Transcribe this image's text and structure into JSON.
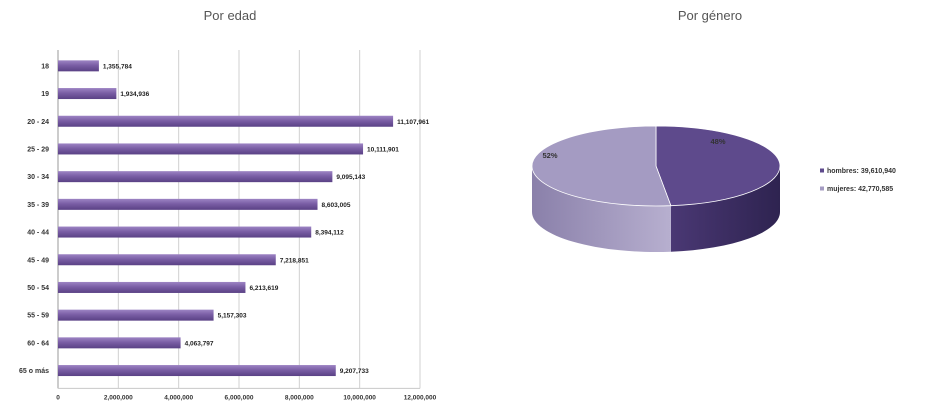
{
  "chart_data": [
    {
      "type": "bar",
      "orientation": "horizontal",
      "title": "Por edad",
      "categories": [
        "18",
        "19",
        "20 - 24",
        "25 - 29",
        "30 - 34",
        "35 - 39",
        "40 - 44",
        "45 - 49",
        "50 - 54",
        "55 - 59",
        "60 - 64",
        "65 o más"
      ],
      "values": [
        1355784,
        1934936,
        11107961,
        10111901,
        9095143,
        8603005,
        8394112,
        7218851,
        6213619,
        5157303,
        4063797,
        9207733
      ],
      "value_labels": [
        "1,355,784",
        "1,934,936",
        "11,107,961",
        "10,111,901",
        "9,095,143",
        "8,603,005",
        "8,394,112",
        "7,218,851",
        "6,213,619",
        "5,157,303",
        "4,063,797",
        "9,207,733"
      ],
      "xlim": [
        0,
        12000000
      ],
      "xticks": [
        "0",
        "2,000,000",
        "4,000,000",
        "6,000,000",
        "8,000,000",
        "10,000,000",
        "12,000,000"
      ],
      "grid": true,
      "bar_color": "#7a5ea5",
      "xlabel": "",
      "ylabel": ""
    },
    {
      "type": "pie",
      "title": "Por género",
      "slices": [
        {
          "name": "hombres",
          "legend_label": "hombres: 39,610,940",
          "value": 39610940,
          "percent_label": "48%",
          "color": "#5e4a8c"
        },
        {
          "name": "mujeres",
          "legend_label": "mujeres: 42,770,585",
          "value": 42770585,
          "percent_label": "52%",
          "color": "#a49bc2"
        }
      ],
      "style": "3d",
      "legend_position": "right"
    }
  ]
}
